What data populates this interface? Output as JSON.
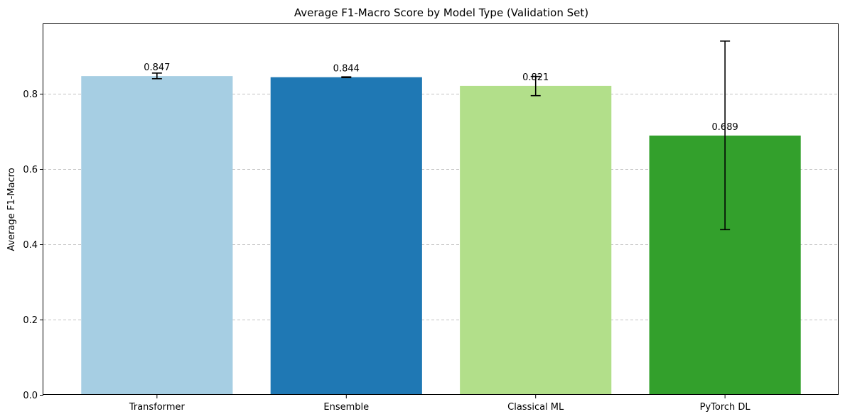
{
  "chart_data": {
    "type": "bar",
    "title": "Average F1-Macro Score by Model Type (Validation Set)",
    "xlabel": "",
    "ylabel": "Average F1-Macro",
    "categories": [
      "Transformer",
      "Ensemble",
      "Classical ML",
      "PyTorch DL"
    ],
    "values": [
      0.847,
      0.844,
      0.821,
      0.689
    ],
    "value_labels": [
      "0.847",
      "0.844",
      "0.821",
      "0.689"
    ],
    "error_bars": [
      {
        "low": 0.84,
        "high": 0.855
      },
      {
        "low": 0.843,
        "high": 0.845
      },
      {
        "low": 0.795,
        "high": 0.846
      },
      {
        "low": 0.439,
        "high": 0.94
      }
    ],
    "colors": [
      "#a6cee3",
      "#1f78b4",
      "#b2df8a",
      "#33a02c"
    ],
    "ylim": [
      0,
      0.985
    ],
    "yticks": [
      0.0,
      0.2,
      0.4,
      0.6,
      0.8
    ],
    "ytick_labels": [
      "0.0",
      "0.2",
      "0.4",
      "0.6",
      "0.8"
    ],
    "grid": "y-dashed",
    "legend": "none"
  }
}
